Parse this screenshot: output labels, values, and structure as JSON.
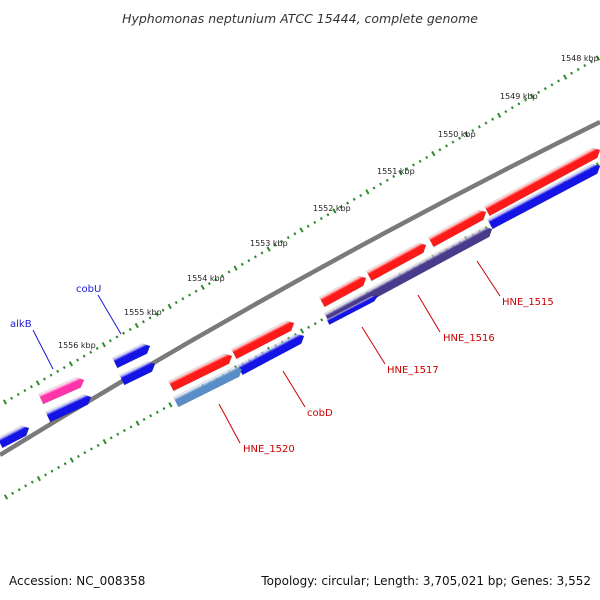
{
  "title": "Hyphomonas neptunium ATCC 15444, complete genome",
  "footer": {
    "accession": "Accession: NC_008358",
    "summary": "Topology: circular; Length: 3,705,021 bp; Genes: 3,552"
  },
  "colors": {
    "backbone": "#7a7a7a",
    "ticks": "#2e8b2e",
    "cds_forward": "#ff1a1a",
    "cds_reverse": "#1414e6",
    "rna_gene": "#ff33aa",
    "overlap": "#4a3a8c",
    "highlight": "#5a8cc8",
    "label_blue": "#1a1ad6",
    "label_red": "#cc0000"
  },
  "scale": {
    "unit": "kbp",
    "labels": [
      "1548 kbp",
      "1549 kbp",
      "1550 kbp",
      "1551 kbp",
      "1552 kbp",
      "1553 kbp",
      "1554 kbp",
      "1555 kbp",
      "1556 kbp"
    ]
  },
  "genes": [
    {
      "name": "alkB",
      "label_color": "#1a1ad6"
    },
    {
      "name": "cobU",
      "label_color": "#1a1ad6"
    },
    {
      "name": "HNE_1520",
      "label_color": "#cc0000"
    },
    {
      "name": "cobD",
      "label_color": "#cc0000"
    },
    {
      "name": "HNE_1517",
      "label_color": "#cc0000"
    },
    {
      "name": "HNE_1516",
      "label_color": "#cc0000"
    },
    {
      "name": "HNE_1515",
      "label_color": "#cc0000"
    }
  ]
}
